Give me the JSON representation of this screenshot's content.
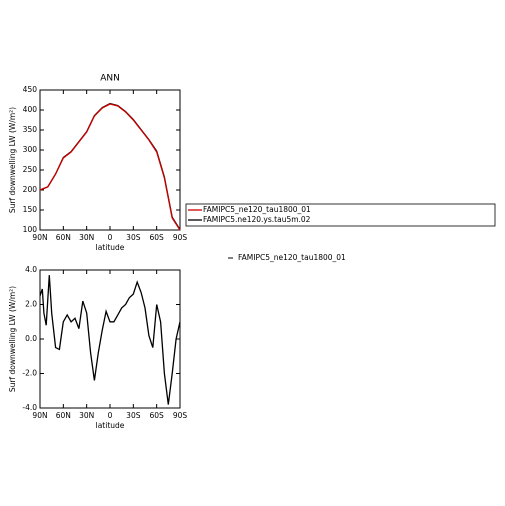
{
  "chart_data": [
    {
      "type": "line",
      "title": "ANN",
      "xlabel": "latitude",
      "ylabel": "Surf downwelling LW (W/m²)",
      "x": [
        90,
        80,
        70,
        60,
        50,
        40,
        30,
        20,
        10,
        0,
        -10,
        -20,
        -30,
        -40,
        -50,
        -60,
        -70,
        -80,
        -90
      ],
      "series": [
        {
          "name": "FAMIPC5_ne120_tau1800_01",
          "color": "#cc0000",
          "values": [
            200,
            208,
            240,
            280,
            295,
            320,
            345,
            385,
            405,
            415,
            410,
            395,
            375,
            350,
            325,
            295,
            230,
            130,
            100
          ]
        },
        {
          "name": "FAMIPC5.ne120.ys.tau5m.02",
          "color": "#000000",
          "values": [
            200,
            208,
            240,
            281,
            296,
            321,
            346,
            386,
            406,
            416,
            411,
            396,
            376,
            351,
            326,
            297,
            232,
            132,
            101
          ]
        }
      ],
      "xlim": [
        90,
        -90
      ],
      "xticks": [
        {
          "value": 90,
          "label": "90N"
        },
        {
          "value": 60,
          "label": "60N"
        },
        {
          "value": 30,
          "label": "30N"
        },
        0,
        {
          "value": -30,
          "label": "30S"
        },
        {
          "value": -60,
          "label": "60S"
        },
        {
          "value": -90,
          "label": "90S"
        }
      ],
      "ylim": [
        100,
        450
      ],
      "yticks": [
        100,
        150,
        200,
        250,
        300,
        350,
        400,
        450
      ],
      "annotations": [
        "FAMIPC5_ne120_tau1800_01"
      ]
    },
    {
      "type": "line",
      "xlabel": "latitude",
      "ylabel": "Surf downwelling LW (W/m²)",
      "x": [
        90,
        87,
        85,
        82,
        78,
        75,
        70,
        65,
        60,
        55,
        50,
        45,
        40,
        35,
        30,
        25,
        20,
        15,
        10,
        5,
        0,
        -5,
        -10,
        -15,
        -20,
        -25,
        -30,
        -35,
        -40,
        -45,
        -50,
        -55,
        -60,
        -65,
        -70,
        -75,
        -80,
        -85,
        -90
      ],
      "series": [
        {
          "name": "FAMIPC5_ne120_tau1800_01",
          "color": "#000000",
          "values": [
            2.5,
            2.9,
            1.5,
            0.8,
            3.7,
            1.5,
            -0.5,
            -0.6,
            1.0,
            1.4,
            1.0,
            1.2,
            0.6,
            2.2,
            1.5,
            -0.8,
            -2.4,
            -0.8,
            0.5,
            1.6,
            1.0,
            1.0,
            1.4,
            1.8,
            2.0,
            2.4,
            2.6,
            3.3,
            2.7,
            1.8,
            0.2,
            -0.5,
            2.0,
            1.0,
            -2.0,
            -3.8,
            -2.0,
            0.0,
            1.0
          ]
        }
      ],
      "xlim": [
        90,
        -90
      ],
      "xticks": [
        {
          "value": 90,
          "label": "90N"
        },
        {
          "value": 60,
          "label": "60N"
        },
        {
          "value": 30,
          "label": "30N"
        },
        0,
        {
          "value": -30,
          "label": "30S"
        },
        {
          "value": -60,
          "label": "60S"
        },
        {
          "value": -90,
          "label": "90S"
        }
      ],
      "ylim": [
        -4,
        4
      ],
      "yticks": [
        {
          "value": -4,
          "label": "-4.0"
        },
        {
          "value": -2,
          "label": "-2.0"
        },
        {
          "value": 0,
          "label": "0.0"
        },
        {
          "value": 2,
          "label": "2.0"
        },
        {
          "value": 4,
          "label": "4.0"
        }
      ]
    }
  ]
}
